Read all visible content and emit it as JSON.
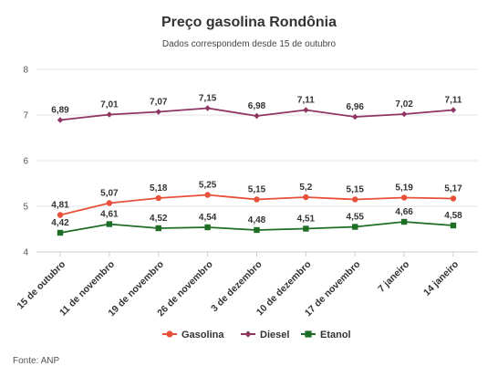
{
  "chart_data": {
    "type": "line",
    "title": "Preço gasolina Rondônia",
    "subtitle": "Dados correspondem desde 15 de outubro",
    "categories": [
      "15 de outubro",
      "11 de novembro",
      "19 de novembro",
      "26 de novembro",
      "3 de dezembro",
      "10 de dezembro",
      "17 de novembro",
      "7 janeiro",
      "14 janeiro"
    ],
    "ylim": [
      4,
      8
    ],
    "yticks": [
      "4",
      "5",
      "6",
      "7",
      "8"
    ],
    "grid": true,
    "legend_position": "bottom",
    "series": [
      {
        "name": "Gasolina",
        "color": "#e8503a",
        "marker": "circle",
        "values": [
          4.81,
          5.07,
          5.18,
          5.25,
          5.15,
          5.2,
          5.15,
          5.19,
          5.17
        ],
        "labels": [
          "4,81",
          "5,07",
          "5,18",
          "5,25",
          "5,15",
          "5,2",
          "5,15",
          "5,19",
          "5,17"
        ]
      },
      {
        "name": "Diesel",
        "color": "#8e3563",
        "marker": "diamond",
        "values": [
          6.89,
          7.01,
          7.07,
          7.15,
          6.98,
          7.11,
          6.96,
          7.02,
          7.11
        ],
        "labels": [
          "6,89",
          "7,01",
          "7,07",
          "7,15",
          "6,98",
          "7,11",
          "6,96",
          "7,02",
          "7,11"
        ]
      },
      {
        "name": "Etanol",
        "color": "#1f6e26",
        "marker": "square",
        "values": [
          4.42,
          4.61,
          4.52,
          4.54,
          4.48,
          4.51,
          4.55,
          4.66,
          4.58
        ],
        "labels": [
          "4,42",
          "4,61",
          "4,52",
          "4,54",
          "4,48",
          "4,51",
          "4,55",
          "4,66",
          "4,58"
        ]
      }
    ],
    "source": "Fonte: ANP"
  }
}
